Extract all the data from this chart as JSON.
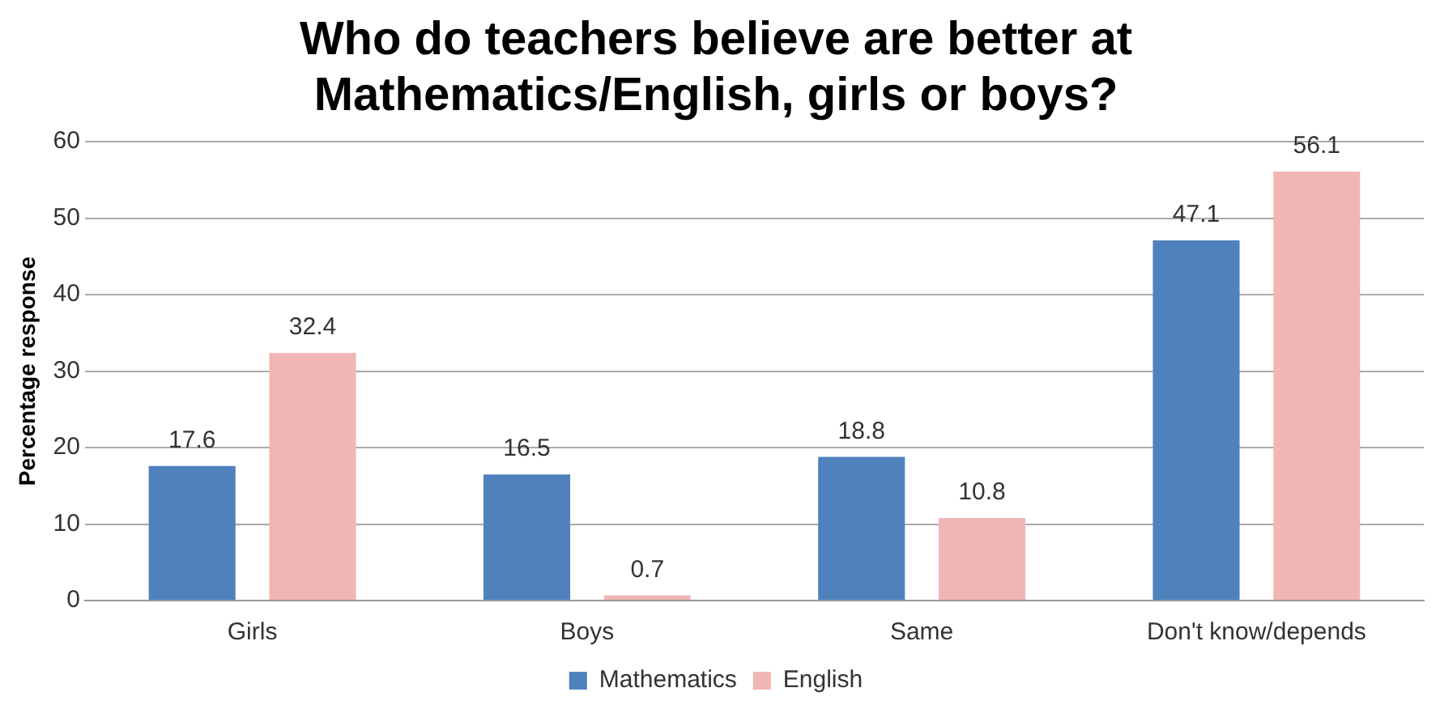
{
  "chart_data": {
    "type": "bar",
    "title": "Who do teachers believe are better at Mathematics/English, girls or boys?",
    "ylabel": "Percentage response",
    "categories": [
      "Girls",
      "Boys",
      "Same",
      "Don't know/depends"
    ],
    "series": [
      {
        "name": "Mathematics",
        "color": "#4f81bd",
        "values": [
          17.6,
          16.5,
          18.8,
          47.1
        ]
      },
      {
        "name": "English",
        "color": "#f0b6b5",
        "values": [
          32.4,
          0.7,
          10.8,
          56.1
        ]
      }
    ],
    "ylim": [
      0,
      60
    ],
    "yticks": [
      0,
      10,
      20,
      30,
      40,
      50,
      60
    ],
    "grid": "y",
    "legend": "bottom",
    "data_labels": true
  }
}
